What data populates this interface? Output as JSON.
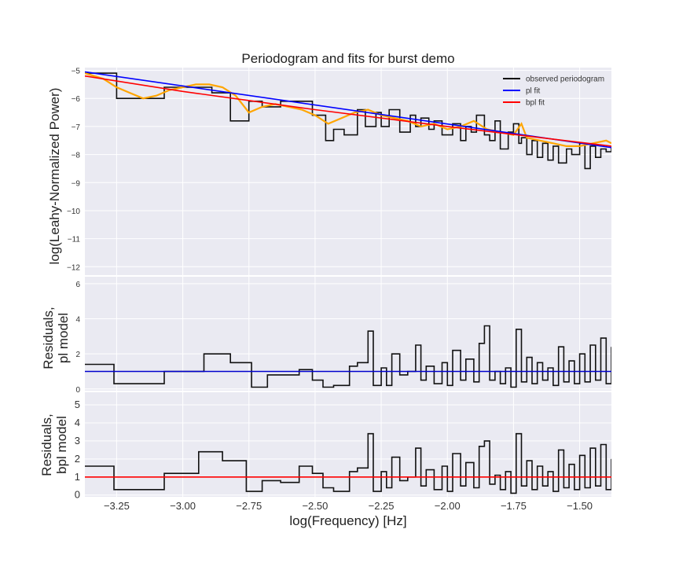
{
  "chart_data": [
    {
      "type": "line",
      "panel": "top",
      "title": "Periodogram and fits for burst demo",
      "ylabel": "log(Leahy-Normalized Power)",
      "xlabel": "",
      "xlim": [
        -3.37,
        -1.38
      ],
      "ylim": [
        -12.3,
        -4.9
      ],
      "yticks": [
        -5,
        -6,
        -7,
        -8,
        -9,
        -10,
        -11,
        -12
      ],
      "grid": true,
      "legend": {
        "placement": "top-right",
        "entries": [
          {
            "label": "observed periodogram",
            "color": "#000000"
          },
          {
            "label": "pl fit",
            "color": "#0000ff"
          },
          {
            "label": "bpl fit",
            "color": "#ff0000"
          }
        ]
      },
      "series": [
        {
          "name": "observed periodogram",
          "style": "step",
          "color": "#111111",
          "x": [
            -3.37,
            -3.25,
            -3.07,
            -2.89,
            -2.82,
            -2.75,
            -2.7,
            -2.63,
            -2.51,
            -2.46,
            -2.43,
            -2.39,
            -2.34,
            -2.31,
            -2.27,
            -2.25,
            -2.22,
            -2.18,
            -2.14,
            -2.12,
            -2.1,
            -2.07,
            -2.05,
            -2.02,
            -1.98,
            -1.95,
            -1.93,
            -1.91,
            -1.89,
            -1.86,
            -1.84,
            -1.82,
            -1.8,
            -1.77,
            -1.75,
            -1.73,
            -1.72,
            -1.7,
            -1.68,
            -1.66,
            -1.64,
            -1.62,
            -1.6,
            -1.58,
            -1.55,
            -1.53,
            -1.5,
            -1.48,
            -1.46,
            -1.44,
            -1.42,
            -1.4,
            -1.38
          ],
          "y": [
            -5.1,
            -6.0,
            -5.6,
            -5.8,
            -6.8,
            -6.1,
            -6.3,
            -6.1,
            -6.6,
            -7.5,
            -7.1,
            -7.3,
            -6.4,
            -7.0,
            -6.5,
            -7.0,
            -6.4,
            -7.2,
            -6.6,
            -7.0,
            -6.7,
            -7.1,
            -6.8,
            -7.3,
            -6.9,
            -7.5,
            -7.0,
            -7.2,
            -6.6,
            -7.3,
            -7.5,
            -6.8,
            -7.8,
            -7.2,
            -6.9,
            -7.6,
            -7.4,
            -8.0,
            -7.5,
            -8.1,
            -7.6,
            -8.2,
            -7.7,
            -8.3,
            -7.8,
            -8.0,
            -7.6,
            -8.5,
            -7.7,
            -8.1,
            -7.8,
            -7.9,
            -7.7
          ]
        },
        {
          "name": "bpl fit smooth",
          "style": "line",
          "color": "#ffa500",
          "x": [
            -3.37,
            -3.3,
            -3.25,
            -3.2,
            -3.15,
            -3.1,
            -3.05,
            -3.0,
            -2.95,
            -2.9,
            -2.85,
            -2.8,
            -2.75,
            -2.7,
            -2.65,
            -2.6,
            -2.55,
            -2.5,
            -2.45,
            -2.4,
            -2.35,
            -2.3,
            -2.25,
            -2.2,
            -2.15,
            -2.1,
            -2.05,
            -2.0,
            -1.95,
            -1.9,
            -1.85,
            -1.8,
            -1.75,
            -1.72,
            -1.7,
            -1.65,
            -1.6,
            -1.55,
            -1.5,
            -1.45,
            -1.4,
            -1.38
          ],
          "y": [
            -5.1,
            -5.3,
            -5.6,
            -5.8,
            -6.0,
            -5.9,
            -5.7,
            -5.6,
            -5.5,
            -5.5,
            -5.6,
            -5.9,
            -6.5,
            -6.3,
            -6.2,
            -6.3,
            -6.4,
            -6.6,
            -6.9,
            -6.7,
            -6.5,
            -6.4,
            -6.6,
            -6.7,
            -6.8,
            -7.0,
            -6.9,
            -7.1,
            -7.0,
            -6.8,
            -7.1,
            -7.2,
            -7.3,
            -6.9,
            -7.4,
            -7.5,
            -7.6,
            -7.7,
            -7.7,
            -7.6,
            -7.5,
            -7.6
          ]
        },
        {
          "name": "pl fit",
          "style": "line",
          "color": "#0000ff",
          "x": [
            -3.37,
            -1.38
          ],
          "y": [
            -5.05,
            -7.75
          ]
        },
        {
          "name": "bpl fit",
          "style": "line",
          "color": "#ff0000",
          "x": [
            -3.37,
            -3.0,
            -2.5,
            -2.0,
            -1.38
          ],
          "y": [
            -5.2,
            -5.75,
            -6.4,
            -7.0,
            -7.7
          ]
        }
      ]
    },
    {
      "type": "line",
      "panel": "middle",
      "xlabel": "",
      "ylabel": "Residuals,\npl model",
      "ylabel_lines": [
        "Residuals,",
        "pl model"
      ],
      "xlim": [
        -3.37,
        -1.38
      ],
      "ylim": [
        -0.1,
        6.4
      ],
      "yticks": [
        0,
        2,
        4,
        6
      ],
      "grid": true,
      "series": [
        {
          "name": "residuals pl",
          "style": "step",
          "color": "#111111",
          "x": [
            -3.37,
            -3.26,
            -3.07,
            -2.92,
            -2.82,
            -2.74,
            -2.68,
            -2.56,
            -2.51,
            -2.47,
            -2.43,
            -2.37,
            -2.34,
            -2.3,
            -2.28,
            -2.25,
            -2.23,
            -2.21,
            -2.18,
            -2.15,
            -2.12,
            -2.1,
            -2.08,
            -2.05,
            -2.02,
            -2.0,
            -1.98,
            -1.95,
            -1.93,
            -1.9,
            -1.88,
            -1.86,
            -1.84,
            -1.82,
            -1.8,
            -1.78,
            -1.76,
            -1.74,
            -1.72,
            -1.7,
            -1.68,
            -1.66,
            -1.64,
            -1.62,
            -1.6,
            -1.58,
            -1.56,
            -1.54,
            -1.52,
            -1.5,
            -1.48,
            -1.46,
            -1.44,
            -1.42,
            -1.4,
            -1.38
          ],
          "y": [
            1.4,
            0.3,
            1.0,
            2.0,
            1.5,
            0.1,
            0.8,
            1.1,
            0.5,
            0.1,
            0.2,
            1.3,
            1.5,
            3.3,
            0.2,
            1.2,
            0.2,
            2.0,
            0.8,
            1.0,
            2.5,
            0.5,
            1.3,
            0.3,
            1.5,
            0.2,
            2.2,
            0.5,
            1.7,
            0.4,
            2.6,
            3.6,
            0.5,
            1.0,
            0.3,
            1.2,
            0.1,
            3.4,
            0.4,
            1.8,
            0.3,
            1.5,
            0.5,
            1.2,
            0.2,
            2.4,
            0.4,
            1.6,
            0.3,
            2.0,
            0.4,
            2.5,
            0.5,
            2.9,
            0.3,
            2.4
          ]
        },
        {
          "name": "pl reference",
          "style": "line",
          "color": "#0000cd",
          "x": [
            -3.37,
            -1.38
          ],
          "y": [
            1.0,
            1.0
          ]
        }
      ]
    },
    {
      "type": "line",
      "panel": "bottom",
      "xlabel": "log(Frequency) [Hz]",
      "ylabel": "Residuals,\nbpl model",
      "ylabel_lines": [
        "Residuals,",
        "bpl model"
      ],
      "xlim": [
        -3.37,
        -1.38
      ],
      "ylim": [
        -0.1,
        5.7
      ],
      "yticks": [
        0,
        1,
        2,
        3,
        4,
        5
      ],
      "xticks": [
        -3.25,
        -3.0,
        -2.75,
        -2.5,
        -2.25,
        -2.0,
        -1.75,
        -1.5
      ],
      "xtick_labels": [
        "−3.25",
        "−3.00",
        "−2.75",
        "−2.50",
        "−2.25",
        "−2.00",
        "−1.75",
        "−1.50"
      ],
      "grid": true,
      "series": [
        {
          "name": "residuals bpl",
          "style": "step",
          "color": "#111111",
          "x": [
            -3.37,
            -3.26,
            -3.07,
            -2.94,
            -2.85,
            -2.76,
            -2.7,
            -2.63,
            -2.56,
            -2.51,
            -2.47,
            -2.43,
            -2.37,
            -2.34,
            -2.3,
            -2.28,
            -2.25,
            -2.23,
            -2.21,
            -2.18,
            -2.15,
            -2.12,
            -2.1,
            -2.08,
            -2.05,
            -2.02,
            -2.0,
            -1.98,
            -1.95,
            -1.93,
            -1.9,
            -1.88,
            -1.86,
            -1.84,
            -1.82,
            -1.8,
            -1.78,
            -1.76,
            -1.74,
            -1.72,
            -1.7,
            -1.68,
            -1.66,
            -1.64,
            -1.62,
            -1.6,
            -1.58,
            -1.56,
            -1.54,
            -1.52,
            -1.5,
            -1.48,
            -1.46,
            -1.44,
            -1.42,
            -1.4,
            -1.38
          ],
          "y": [
            1.6,
            0.3,
            1.2,
            2.4,
            1.9,
            0.2,
            0.8,
            0.7,
            1.6,
            1.2,
            0.4,
            0.2,
            1.3,
            1.5,
            3.4,
            0.2,
            1.3,
            0.4,
            2.1,
            0.8,
            1.0,
            2.6,
            0.5,
            1.4,
            0.3,
            1.6,
            0.2,
            2.3,
            0.5,
            1.8,
            0.4,
            2.7,
            3.0,
            0.6,
            1.1,
            0.3,
            1.3,
            0.1,
            3.4,
            0.5,
            1.9,
            0.3,
            1.6,
            0.5,
            1.3,
            0.2,
            2.5,
            0.4,
            1.7,
            0.3,
            2.2,
            0.4,
            2.6,
            0.5,
            2.8,
            0.3,
            2.0
          ]
        },
        {
          "name": "bpl reference",
          "style": "line",
          "color": "#ff0000",
          "x": [
            -3.37,
            -1.38
          ],
          "y": [
            1.0,
            1.0
          ]
        }
      ]
    }
  ]
}
